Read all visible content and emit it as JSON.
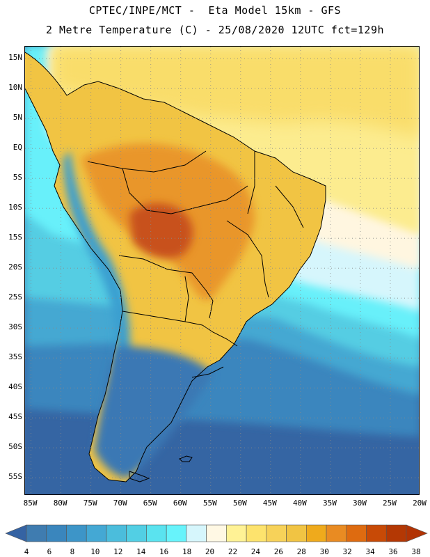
{
  "header": {
    "line1": "CPTEC/INPE/MCT -  Eta Model 15km - GFS",
    "line2": "2 Metre Temperature (C) - 25/08/2020 12UTC fct=129h"
  },
  "axes": {
    "lat_labels": [
      "15N",
      "10N",
      "5N",
      "EQ",
      "5S",
      "10S",
      "15S",
      "20S",
      "25S",
      "30S",
      "35S",
      "40S",
      "45S",
      "50S",
      "55S"
    ],
    "lat_values": [
      15,
      10,
      5,
      0,
      -5,
      -10,
      -15,
      -20,
      -25,
      -30,
      -35,
      -40,
      -45,
      -50,
      -55
    ],
    "lon_labels": [
      "85W",
      "80W",
      "75W",
      "70W",
      "65W",
      "60W",
      "55W",
      "50W",
      "45W",
      "40W",
      "35W",
      "30W",
      "25W",
      "20W"
    ],
    "lon_values": [
      -85,
      -80,
      -75,
      -70,
      -65,
      -60,
      -55,
      -50,
      -45,
      -40,
      -35,
      -30,
      -25,
      -20
    ],
    "lat_range": [
      -58,
      17
    ],
    "lon_range": [
      -86,
      -20
    ]
  },
  "colorbar": {
    "title": "2 Metre Temperature (C)",
    "labels": [
      "4",
      "6",
      "8",
      "10",
      "12",
      "14",
      "16",
      "18",
      "20",
      "22",
      "24",
      "26",
      "28",
      "30",
      "32",
      "34",
      "36",
      "38"
    ],
    "colors": [
      "#3f7cb0",
      "#3a86bd",
      "#3d95c8",
      "#44a8d4",
      "#4bbddc",
      "#52cfe4",
      "#5ae3ef",
      "#67f3fb",
      "#d6f6fc",
      "#fff8e4",
      "#fff295",
      "#fde36d",
      "#f7d259",
      "#f1c443",
      "#efaa1c",
      "#e98b22",
      "#de6b10",
      "#c84a06",
      "#b43804"
    ],
    "under_color": "#3563a3",
    "over_color": "#b13304"
  },
  "map_colors": {
    "ocean_far_south": "#3565a3",
    "ocean_south": "#3b86be",
    "ocean_mid": "#45a8d2",
    "ocean_cool": "#55cde3",
    "ocean_cyan": "#68f0fa",
    "ocean_pale": "#d6f6fc",
    "ocean_cream": "#fff6e0",
    "ocean_yellow": "#fcec8f",
    "ocean_warm": "#f9dd6a",
    "land_warm": "#f1c443",
    "land_hot": "#e9962a",
    "land_hottest": "#c8511a",
    "andes": "#3a9fd0",
    "patagonia": "#3a78b4",
    "borders": "#000000"
  }
}
